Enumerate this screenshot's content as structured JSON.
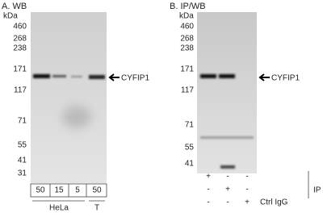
{
  "panels": [
    {
      "title": "A. WB",
      "unit": "kDa",
      "markers": [
        460,
        268,
        238,
        171,
        117,
        71,
        55,
        41,
        31
      ],
      "band_label": "CYFIP1",
      "lane_amounts": [
        50,
        15,
        5,
        50
      ],
      "cell_lines": [
        "HeLa",
        "T"
      ]
    },
    {
      "title": "B. IP/WB",
      "unit": "kDa",
      "markers": [
        460,
        268,
        238,
        171,
        117,
        71,
        55,
        41
      ],
      "band_label": "CYFIP1",
      "ip_rows": [
        [
          "+",
          "-",
          "-"
        ],
        [
          "-",
          "+",
          "-"
        ],
        [
          "-",
          "-",
          "+"
        ]
      ],
      "ctrl_label": "Ctrl IgG",
      "ip_label": "IP"
    }
  ]
}
